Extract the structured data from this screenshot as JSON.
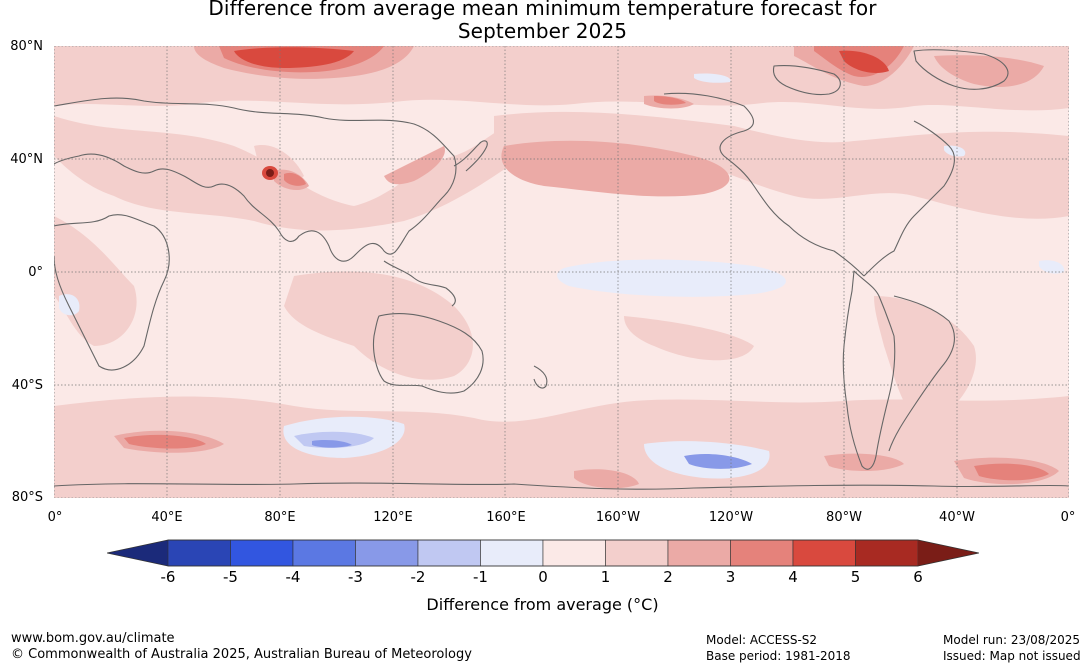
{
  "title": {
    "line1": "Difference from average mean minimum temperature forecast for",
    "line2": "September 2025"
  },
  "axes": {
    "lat_labels": [
      "80°N",
      "40°N",
      "0°",
      "40°S",
      "80°S"
    ],
    "lon_labels": [
      "0°",
      "40°E",
      "80°E",
      "120°E",
      "160°E",
      "160°W",
      "120°W",
      "80°W",
      "40°W",
      "0°"
    ]
  },
  "colorbar": {
    "ticks": [
      "-6",
      "-5",
      "-4",
      "-3",
      "-2",
      "-1",
      "0",
      "1",
      "2",
      "3",
      "4",
      "5",
      "6"
    ],
    "colors": [
      "#1b2a7a",
      "#2a45b5",
      "#3256e0",
      "#5b78e3",
      "#8899e8",
      "#c0c8f2",
      "#e8ecfa",
      "#fbe9e7",
      "#f3cfcc",
      "#ebaaa6",
      "#e5827b",
      "#d9493e",
      "#a82a22",
      "#7a1d17"
    ],
    "label": "Difference from average (°C)"
  },
  "footer": {
    "website": "www.bom.gov.au/climate",
    "copyright": "© Commonwealth of Australia 2025, Australian Bureau of Meteorology",
    "model": "Model: ACCESS-S2",
    "base_period": "Base period: 1981-2018",
    "model_run": "Model run: 23/08/2025",
    "issued": "Issued: Map not issued"
  }
}
